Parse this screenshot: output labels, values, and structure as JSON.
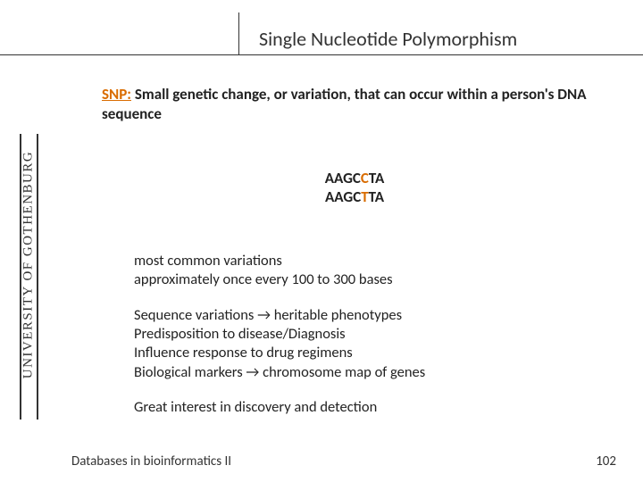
{
  "title": "Single Nucleotide Polymorphism",
  "sidebar": {
    "label": "UNIVERSITY OF GOTHENBURG"
  },
  "definition": {
    "prefix": "SNP:",
    "text": " Small genetic change, or variation, that can occur within a person's DNA sequence"
  },
  "sequences": {
    "s1_pre": "AAGC",
    "s1_hl": "C",
    "s1_post": "TA",
    "s2_pre": "AAGC",
    "s2_hl": "T",
    "s2_post": "TA"
  },
  "notes": {
    "p1l1": "most common variations",
    "p1l2": "approximately once every 100 to 300 bases",
    "p2l1": "Sequence variations → heritable phenotypes",
    "p2l2": "Predisposition to disease/Diagnosis",
    "p2l3": "Influence response to drug regimens",
    "p2l4": "Biological markers → chromosome map of genes",
    "p3l1": "Great interest in discovery and detection"
  },
  "footer": {
    "left": "Databases in bioinformatics II",
    "page": "102"
  },
  "colors": {
    "accent": "#d96c00",
    "text": "#222222",
    "rule": "#333333",
    "background": "#ffffff"
  }
}
